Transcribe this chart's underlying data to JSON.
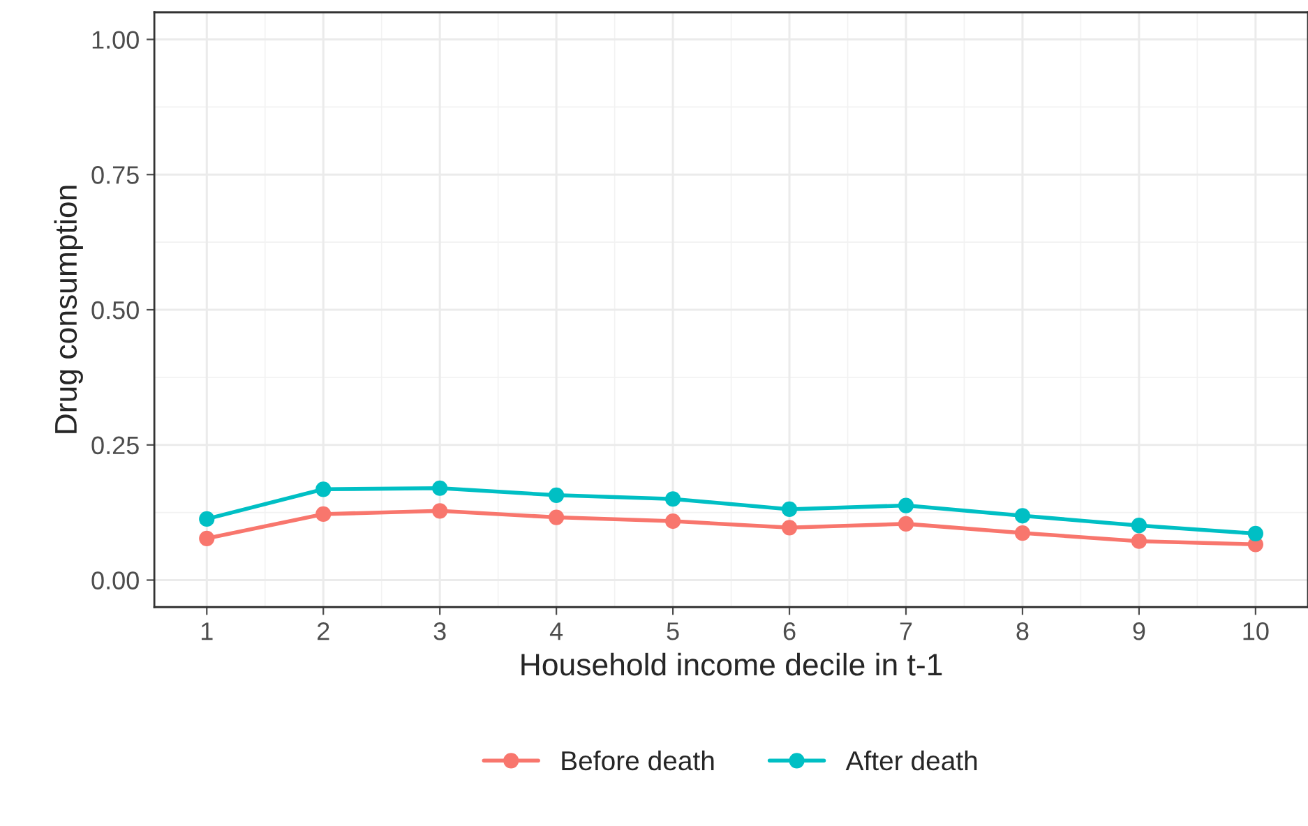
{
  "chart_data": {
    "type": "line",
    "xlabel": "Household income decile in t-1",
    "ylabel": "Drug consumption",
    "x": [
      1,
      2,
      3,
      4,
      5,
      6,
      7,
      8,
      9,
      10
    ],
    "series": [
      {
        "name": "Before death",
        "color": "#f8766d",
        "values": [
          0.077,
          0.122,
          0.128,
          0.116,
          0.109,
          0.097,
          0.104,
          0.087,
          0.072,
          0.066
        ]
      },
      {
        "name": "After death",
        "color": "#00bfc4",
        "values": [
          0.113,
          0.168,
          0.17,
          0.157,
          0.15,
          0.131,
          0.138,
          0.119,
          0.101,
          0.086
        ]
      }
    ],
    "xlim": [
      0.55,
      10.45
    ],
    "xticks": [
      1,
      2,
      3,
      4,
      5,
      6,
      7,
      8,
      9,
      10
    ],
    "ylim": [
      -0.05,
      1.05
    ],
    "yticks": [
      {
        "value": 0,
        "label": "0.00"
      },
      {
        "value": 0.25,
        "label": "0.25"
      },
      {
        "value": 0.5,
        "label": "0.50"
      },
      {
        "value": 0.75,
        "label": "0.75"
      },
      {
        "value": 1,
        "label": "1.00"
      }
    ],
    "grid": true,
    "legend": "bottom",
    "marker": "circle",
    "line_style": "solid"
  }
}
